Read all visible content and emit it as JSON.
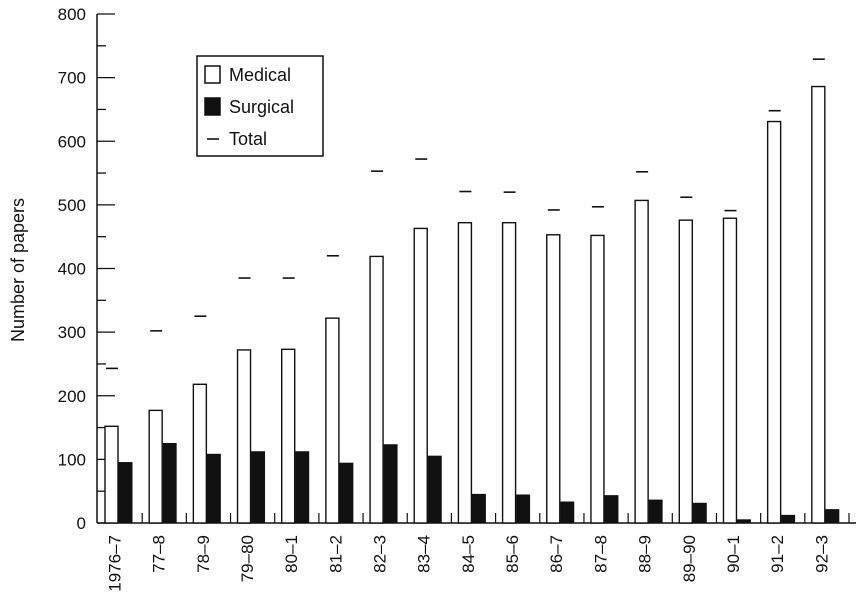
{
  "chart_data": {
    "type": "bar",
    "ylabel": "Number of papers",
    "xlabel": "",
    "ylim": [
      0,
      800
    ],
    "yticks": [
      0,
      100,
      200,
      300,
      400,
      500,
      600,
      700,
      800
    ],
    "categories": [
      "1976–7",
      "77–8",
      "78–9",
      "79–80",
      "80–1",
      "81–2",
      "82–3",
      "83–4",
      "84–5",
      "85–6",
      "86–7",
      "87–8",
      "88–9",
      "89–90",
      "90–1",
      "91–2",
      "92–3"
    ],
    "series": [
      {
        "name": "Medical",
        "style": "bar-open",
        "values": [
          152,
          177,
          218,
          272,
          273,
          322,
          419,
          463,
          472,
          472,
          453,
          452,
          507,
          476,
          479,
          631,
          686
        ]
      },
      {
        "name": "Surgical",
        "style": "bar-filled",
        "values": [
          95,
          125,
          108,
          112,
          112,
          94,
          123,
          105,
          45,
          44,
          33,
          43,
          36,
          31,
          5,
          12,
          21
        ]
      },
      {
        "name": "Total",
        "style": "dash-marker",
        "values": [
          243,
          302,
          325,
          385,
          385,
          420,
          553,
          572,
          521,
          520,
          492,
          497,
          552,
          512,
          491,
          648,
          729
        ]
      }
    ],
    "legend": {
      "position": "top-left"
    },
    "grid": false
  }
}
